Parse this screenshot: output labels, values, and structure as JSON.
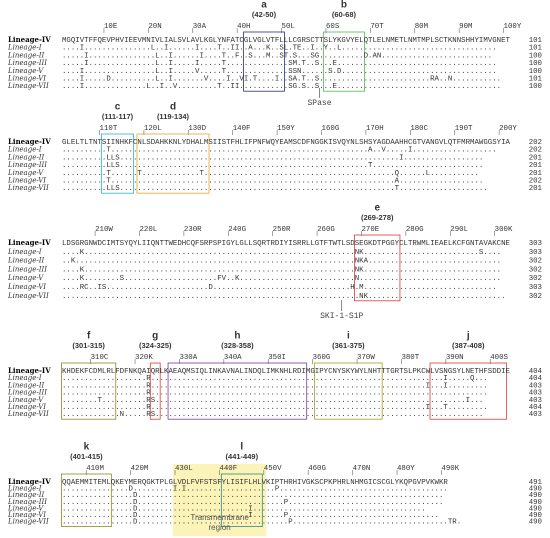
{
  "blocks": [
    {
      "ruler": [
        "10E",
        "20N",
        "30A",
        "40H",
        "50L",
        "60S",
        "70T",
        "80M",
        "90M",
        "100Y"
      ],
      "rows": [
        {
          "name": "Lineage-IV",
          "seq": "MGQIVTFFQEVPHVIEEVMNIVLIALSVLAVLKGLYNFATCGLVGLVTFLLLCGRSCTTSLYKGVYELQTLELNMETLNMTMPLSCTKNNSHHYIMVGNET",
          "end": "101"
        },
        {
          "name": "Lineage-I",
          "seq": "....I...............L..I......I....T..II..A...K..SL.TE..I..Y..L...................................",
          "end": "101"
        },
        {
          "name": "Lineage-II",
          "seq": ".....I...............L..I......I....T..F..S...M..ST.S...SG..........D.AN.........................",
          "end": "100"
        },
        {
          "name": "Lineage-III",
          "seq": ".....I...............L..I.....I.....T..............SM.T..S...E....................................",
          "end": "100"
        },
        {
          "name": "Lineage-V",
          "seq": "....I................L..I.....V.....T..............SSN......S.D...................................",
          "end": "100"
        },
        {
          "name": "Lineage-VI",
          "seq": "....I.....D..........L..I.......V....I..VI.T....I..SA.T..S.........................RA..N...........",
          "end": "101"
        },
        {
          "name": "Lineage-VII",
          "seq": "....I..............L..I..V.........T..II...........SG.S..S...E.....................................",
          "end": "100"
        }
      ],
      "motifs": [
        {
          "letter": "a",
          "range": "(42-50)",
          "color": "#2b2b7a"
        },
        {
          "letter": "b",
          "range": "(60-68)",
          "color": "#4cbb4c"
        }
      ]
    },
    {
      "ruler": [
        "110T",
        "120L",
        "130D",
        "140F",
        "150Y",
        "160G",
        "170H",
        "180C",
        "190T",
        "200Y"
      ],
      "rows": [
        {
          "name": "Lineage-IV",
          "seq": "GLELTLTNTSIINHKFCNLSDAHKKNLYDHALMSIISTFHLIFPNFWQYEAMSCDFNGGKISVQYNLSHSYAGDAAHHCGTVANGVLQTFMRMAWGGSYIA",
          "end": "202"
        },
        {
          "name": "Lineage-I",
          "seq": "..........T..........................................................A..V.....I...................",
          "end": "202"
        },
        {
          "name": "Lineage-II",
          "seq": "..........LLS...............................................................I..................",
          "end": "201"
        },
        {
          "name": "Lineage-III",
          "seq": "..........LLS........................................................T.........................",
          "end": "201"
        },
        {
          "name": "Lineage-V",
          "seq": "..........T......T.............T...........................................Q......L...........",
          "end": "201"
        },
        {
          "name": "Lineage-VI",
          "seq": "..........T................................................................A...................",
          "end": "202"
        },
        {
          "name": "Lineage-VII",
          "seq": "..........LLS..............................................................T....................",
          "end": "201"
        }
      ],
      "motifs": [
        {
          "letter": "c",
          "range": "(111-117)",
          "color": "#22b8d6"
        },
        {
          "letter": "d",
          "range": "(119-134)",
          "color": "#f0a020"
        }
      ]
    },
    {
      "ruler": [
        "210W",
        "220L",
        "230R",
        "240G",
        "250R",
        "260G",
        "270E",
        "280G",
        "290L",
        "300K"
      ],
      "rows": [
        {
          "name": "Lineage-IV",
          "seq": "LDSGRGNWDCIMTSYQYLIIQNTTWEDHCQFSRPSPIGYLGLLSQRTRDIYISRRLLGTFTWTLSDSEGKDTPGGYCLTRWMLIEAELKCFGNTAVAKCNE",
          "end": "303"
        },
        {
          "name": "Lineage-I",
          "seq": "....K.............................................................NK..........................S....",
          "end": "303"
        },
        {
          "name": "Lineage-II",
          "seq": "..K...............................................................NKA..............................",
          "end": "302"
        },
        {
          "name": "Lineage-III",
          "seq": "....K.............................................................NK...............................",
          "end": "302"
        },
        {
          "name": "Lineage-V",
          "seq": "....K........S.....................FV..K..........................N................................",
          "end": "302"
        },
        {
          "name": "Lineage-VI",
          "seq": "....RC..IS.......................D...............................H.M..............................",
          "end": "303"
        },
        {
          "name": "Lineage-VII",
          "seq": "...................................................................NK...............................",
          "end": "302"
        }
      ],
      "motifs": [
        {
          "letter": "e",
          "range": "(269-278)",
          "color": "#d93a3a"
        }
      ]
    },
    {
      "ruler": [
        "310C",
        "320K",
        "330A",
        "340A",
        "350I",
        "360G",
        "370W",
        "380T",
        "390N",
        "400S"
      ],
      "rows": [
        {
          "name": "Lineage-IV",
          "seq": "KHDEKFCDMLRLFDFNKQAIQRLKAEAQMSIQLINKAVNALINDQLIMKNHLRDIMGIPYCNYSKYWYLNHTTTGRTSLPKCWLVSNGSYLNETHFSDDIE",
          "end": "404"
        },
        {
          "name": "Lineage-I",
          "seq": "...................R..................................................................I.....Q...",
          "end": "404"
        },
        {
          "name": "Lineage-II",
          "seq": "...................R..............................................................I...I.........",
          "end": "403"
        },
        {
          "name": "Lineage-III",
          "seq": "...................R............................................................................",
          "end": "403"
        },
        {
          "name": "Lineage-V",
          "seq": "........T..........RS......................................................................I...",
          "end": "403"
        },
        {
          "name": "Lineage-VI",
          "seq": "...................R..............................................................I...T.........",
          "end": "404"
        },
        {
          "name": "Lineage-VII",
          "seq": ".............N.....RS..........................................................................",
          "end": "403"
        }
      ],
      "motifs": [
        {
          "letter": "f",
          "range": "(301-315)",
          "color": "#8a8a20"
        },
        {
          "letter": "g",
          "range": "(324-325)",
          "color": "#d93a3a"
        },
        {
          "letter": "h",
          "range": "(328-358)",
          "color": "#7a3a9a"
        },
        {
          "letter": "i",
          "range": "(361-375)",
          "color": "#a8a020"
        },
        {
          "letter": "j",
          "range": "(387-408)",
          "color": "#d93a3a"
        }
      ]
    },
    {
      "ruler": [
        "410M",
        "420M",
        "430L",
        "440F",
        "450V",
        "460G",
        "470N",
        "480Y",
        "490K"
      ],
      "rows": [
        {
          "name": "Lineage-IV",
          "seq": "QQAEMMITEMLQKEYMERQGKTPLGLVDLFVFSTSFYLISIFLHLVKIPTHRHIVGKSCPKPHRLNHMGICSCGLYKQPGVPVKWKR",
          "end": "491"
        },
        {
          "name": "Lineage-I",
          "seq": "...............D.........I.I....................P......................................",
          "end": "490"
        },
        {
          "name": "Lineage-II",
          "seq": "................D.....................................................................",
          "end": "490"
        },
        {
          "name": "Lineage-III",
          "seq": "................D.................................P...................................",
          "end": "490"
        },
        {
          "name": "Lineage-V",
          "seq": "................D.........................I.......................................",
          "end": "490"
        },
        {
          "name": "Lineage-VI",
          "seq": "................D.........................I.......P..................................",
          "end": "490"
        },
        {
          "name": "Lineage-VII",
          "seq": "................D..................................P...................................TR.",
          "end": "490"
        }
      ],
      "motifs": [
        {
          "letter": "k",
          "range": "(401-415)",
          "color": "#8a8a20"
        },
        {
          "letter": "l",
          "range": "(441-449)",
          "color": "#2a8a8a"
        }
      ]
    }
  ],
  "annotations": {
    "spase": "SPase",
    "ski": "SKI-1-S1P",
    "transmembrane": [
      "Transmembrane",
      "region"
    ]
  }
}
